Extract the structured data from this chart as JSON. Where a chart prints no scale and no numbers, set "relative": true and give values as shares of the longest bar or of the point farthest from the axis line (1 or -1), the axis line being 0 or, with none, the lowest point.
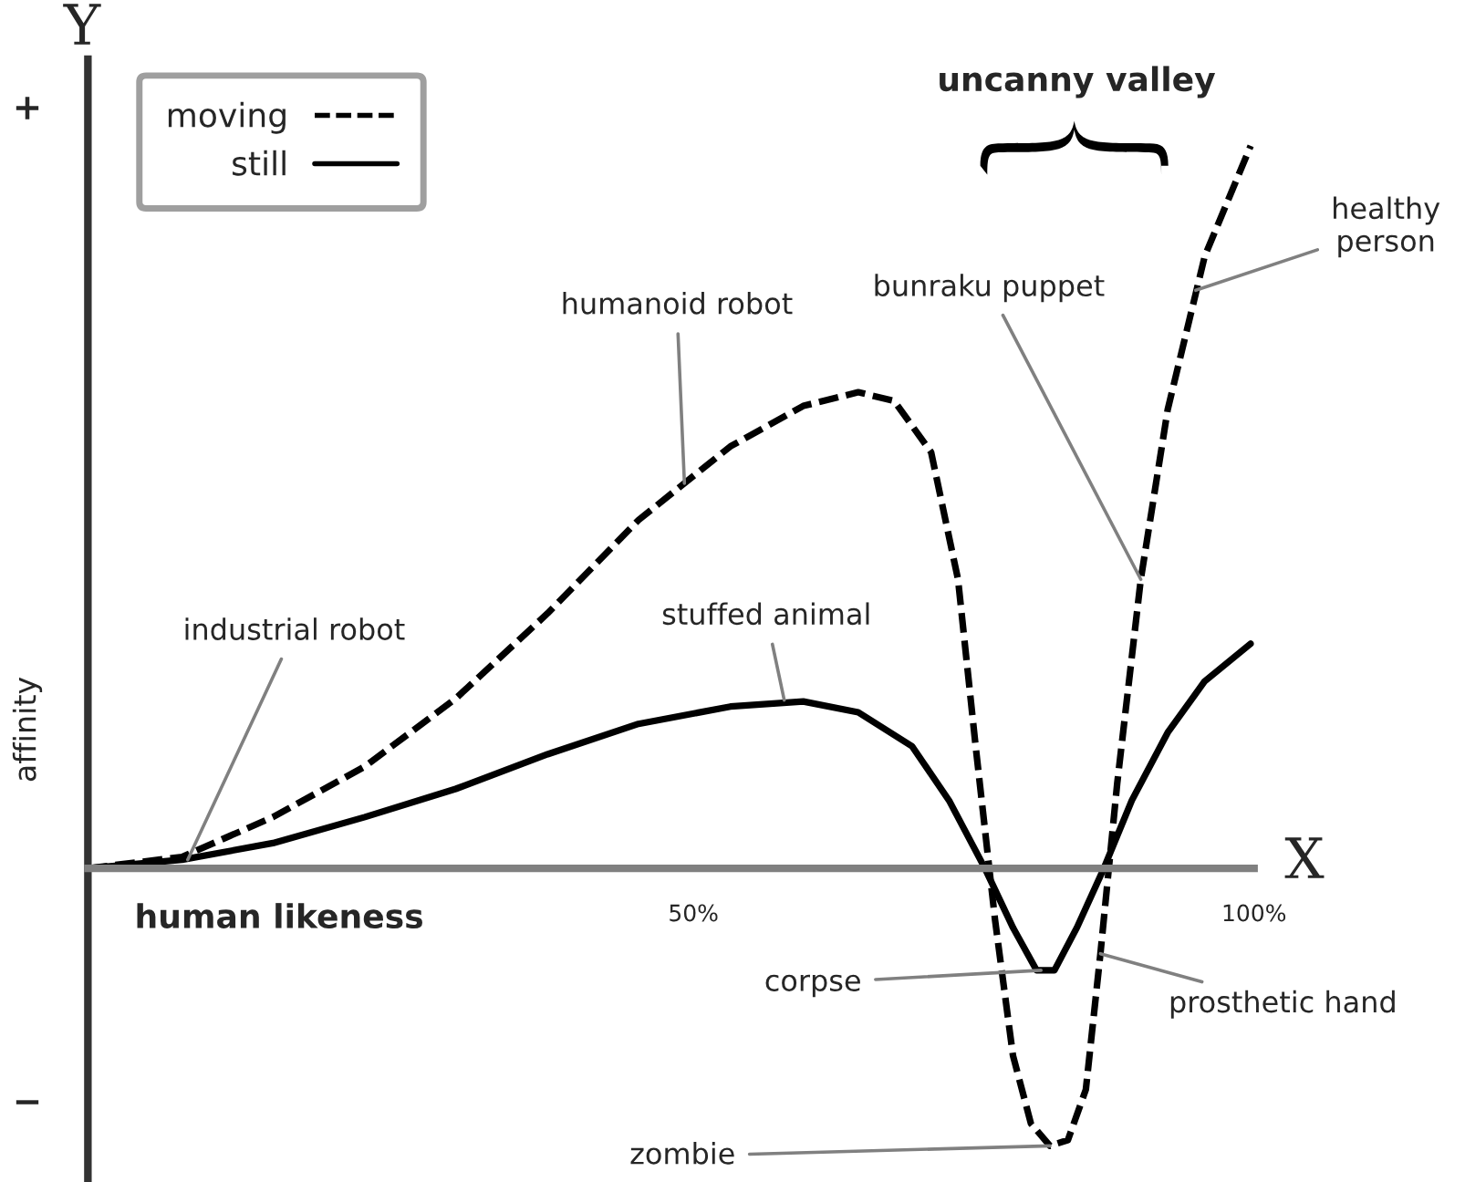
{
  "chart_data": {
    "type": "line",
    "relative": true,
    "xlabel": "human likeness",
    "ylabel": "affinity",
    "xlim": [
      -4,
      100
    ],
    "xticks": [
      {
        "value": 50,
        "label": "50%"
      },
      {
        "value": 100,
        "label": "100%"
      }
    ],
    "legend": "top left",
    "grid": false,
    "series": [
      {
        "name": "moving",
        "color": "#000000",
        "line_style": "dashed",
        "x": [
          -4,
          4.4,
          12.5,
          20.7,
          28.8,
          37,
          45.1,
          53.3,
          59.8,
          64.7,
          67.9,
          71.2,
          73.6,
          75.2,
          76.9,
          78.5,
          80.1,
          81.8,
          83.4,
          85,
          86.3,
          87.8,
          89.9,
          92.3,
          95.6,
          99.7
        ],
        "values": [
          0,
          0.016,
          0.071,
          0.141,
          0.235,
          0.353,
          0.482,
          0.584,
          0.64,
          0.659,
          0.647,
          0.576,
          0.4,
          0.165,
          -0.071,
          -0.259,
          -0.353,
          -0.384,
          -0.376,
          -0.306,
          -0.118,
          0.118,
          0.4,
          0.635,
          0.847,
          1.0
        ]
      },
      {
        "name": "still",
        "color": "#000000",
        "line_style": "solid",
        "x": [
          -4,
          4.4,
          12.5,
          20.7,
          28.8,
          37,
          45.1,
          53.3,
          59.8,
          64.7,
          69.5,
          72.8,
          76,
          78.5,
          80.6,
          82.2,
          84.2,
          86.6,
          89.1,
          92.3,
          95.6,
          99.7
        ],
        "values": [
          0,
          0.012,
          0.035,
          0.071,
          0.11,
          0.158,
          0.2,
          0.224,
          0.231,
          0.216,
          0.169,
          0.094,
          0,
          -0.082,
          -0.141,
          -0.141,
          -0.082,
          0,
          0.094,
          0.188,
          0.259,
          0.311
        ]
      }
    ],
    "annotations": [
      {
        "text": "industrial robot",
        "x": 4.9,
        "y": 0.012
      },
      {
        "text": "humanoid robot",
        "x": 49.2,
        "y": 0.533
      },
      {
        "text": "stuffed animal",
        "x": 58.1,
        "y": 0.233
      },
      {
        "text": "bunraku puppet",
        "x": 89.9,
        "y": 0.4
      },
      {
        "text": "healthy\nperson",
        "x": 94.8,
        "y": 0.8
      },
      {
        "text": "corpse",
        "x": 81,
        "y": -0.141
      },
      {
        "text": "prosthetic hand",
        "x": 86.3,
        "y": -0.118
      },
      {
        "text": "zombie",
        "x": 81.8,
        "y": -0.384
      },
      "Y",
      "+",
      "−",
      "X",
      "uncanny valley"
    ]
  }
}
